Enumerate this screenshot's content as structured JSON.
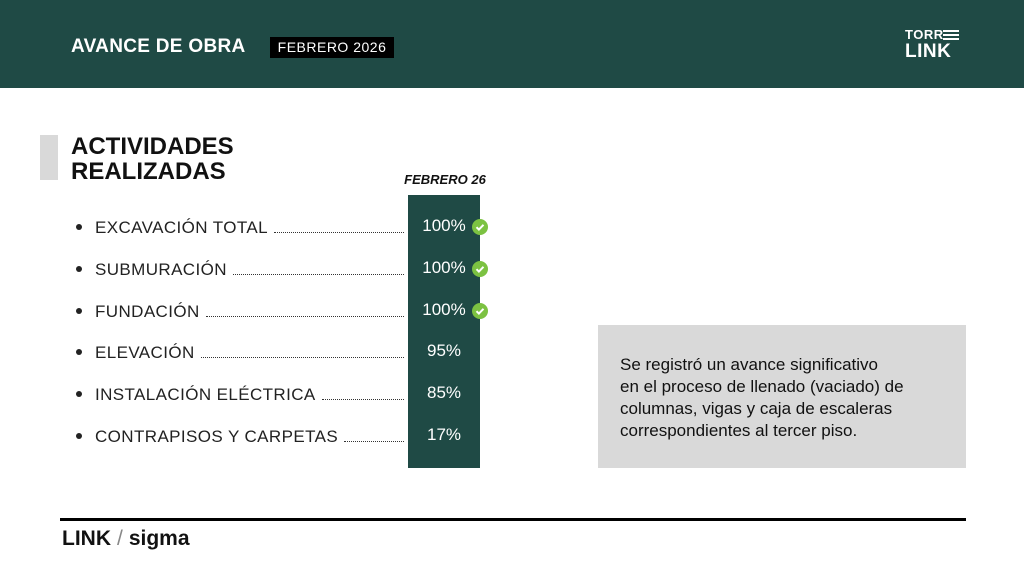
{
  "header": {
    "title": "AVANCE DE OBRA",
    "period": "FEBRERO 2026",
    "logo_top": "TORR",
    "logo_bottom": "LINK"
  },
  "section": {
    "title_line1": "ACTIVIDADES",
    "title_line2": "REALIZADAS",
    "column_header": "FEBRERO 26"
  },
  "activities": [
    {
      "label": "EXCAVACIÓN TOTAL",
      "value": "100%",
      "check": true
    },
    {
      "label": "SUBMURACIÓN",
      "value": "100%",
      "check": true
    },
    {
      "label": "FUNDACIÓN",
      "value": "100%",
      "check": true
    },
    {
      "label": "ELEVACIÓN",
      "value": "95%",
      "check": false
    },
    {
      "label": "INSTALACIÓN ELÉCTRICA",
      "value": "85%",
      "check": false
    },
    {
      "label": "CONTRAPISOS Y CARPETAS",
      "value": "17%",
      "check": false
    }
  ],
  "note": {
    "lines": [
      "Se registró un avance significativo",
      "en el proceso de llenado (vaciado) de",
      "columnas, vigas y caja de escaleras",
      "correspondientes al tercer piso."
    ]
  },
  "footer": {
    "brand1": "LINK",
    "separator": "/",
    "brand2": "sigma"
  }
}
